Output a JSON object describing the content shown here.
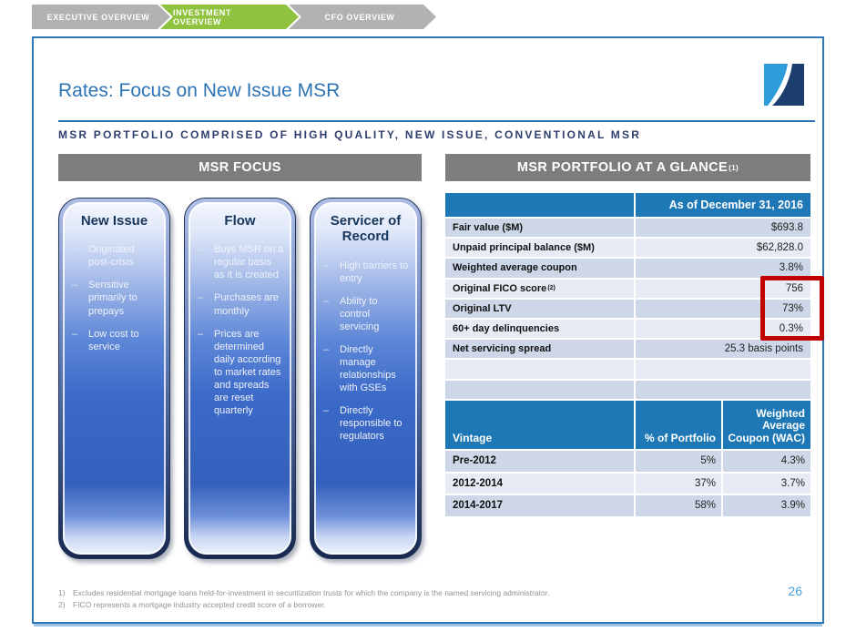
{
  "nav": {
    "tabs": [
      {
        "label": "EXECUTIVE OVERVIEW",
        "active": false
      },
      {
        "label": "INVESTMENT OVERVIEW",
        "active": true
      },
      {
        "label": "CFO OVERVIEW",
        "active": false
      }
    ]
  },
  "slide": {
    "title": "Rates: Focus on New Issue MSR",
    "subtitle": "MSR PORTFOLIO COMPRISED OF HIGH QUALITY, NEW ISSUE, CONVENTIONAL MSR",
    "page_number": "26",
    "footnotes": [
      {
        "num": "1)",
        "text": "Excludes residential mortgage loans held-for-investment in securitization trusts for which the company is the named servicing administrator."
      },
      {
        "num": "2)",
        "text": "FICO represents a mortgage industry accepted credit score of a borrower."
      }
    ]
  },
  "left_section": {
    "header": "MSR FOCUS",
    "bullet_marker": "–",
    "cards": [
      {
        "title": "New Issue",
        "bullets": [
          "Originated post-crisis",
          "Sensitive primarily to prepays",
          "Low cost to service"
        ]
      },
      {
        "title": "Flow",
        "bullets": [
          "Buys MSR on a regular basis as it is created",
          "Purchases are monthly",
          "Prices are determined daily according to market rates and spreads are reset quarterly"
        ]
      },
      {
        "title": "Servicer of Record",
        "bullets": [
          "High barriers to entry",
          "Ability to control servicing",
          "Directly manage relationships with GSEs",
          "Directly responsible to regulators"
        ]
      }
    ]
  },
  "right_section": {
    "header": "MSR PORTFOLIO AT A GLANCE",
    "header_sup": "(1)",
    "glance_table": {
      "header": "As of December 31, 2016",
      "rows": [
        {
          "label": "Fair value ($M)",
          "sup": "",
          "value": "$693.8",
          "highlighted": false
        },
        {
          "label": "Unpaid principal balance ($M)",
          "sup": "",
          "value": "$62,828.0",
          "highlighted": false
        },
        {
          "label": "Weighted average coupon",
          "sup": "",
          "value": "3.8%",
          "highlighted": false
        },
        {
          "label": "Original FICO score",
          "sup": "(2)",
          "value": "756",
          "highlighted": true
        },
        {
          "label": "Original LTV",
          "sup": "",
          "value": "73%",
          "highlighted": true
        },
        {
          "label": "60+ day delinquencies",
          "sup": "",
          "value": "0.3%",
          "highlighted": true
        },
        {
          "label": "Net servicing spread",
          "sup": "",
          "value": "25.3 basis points",
          "highlighted": false
        },
        {
          "label": "",
          "sup": "",
          "value": "",
          "highlighted": false
        },
        {
          "label": "",
          "sup": "",
          "value": "",
          "highlighted": false
        }
      ],
      "highlight_color": "#C00000"
    },
    "vintage_table": {
      "columns": [
        "Vintage",
        "% of Portfolio",
        "Weighted Average Coupon (WAC)"
      ],
      "rows": [
        [
          "Pre-2012",
          "5%",
          "4.3%"
        ],
        [
          "2012-2014",
          "37%",
          "3.7%"
        ],
        [
          "2014-2017",
          "58%",
          "3.9%"
        ]
      ]
    }
  },
  "colors": {
    "accent_blue": "#2E74B5",
    "table_header_blue": "#1E78B6",
    "row_dark": "#CDD7E8",
    "row_light": "#E6EBF4",
    "bar_gray": "#7D7D7D",
    "nav_green": "#8FC23F",
    "nav_gray": "#B2B2B4",
    "logo_light_blue": "#2D9CDB",
    "logo_navy": "#1C3E6E"
  }
}
